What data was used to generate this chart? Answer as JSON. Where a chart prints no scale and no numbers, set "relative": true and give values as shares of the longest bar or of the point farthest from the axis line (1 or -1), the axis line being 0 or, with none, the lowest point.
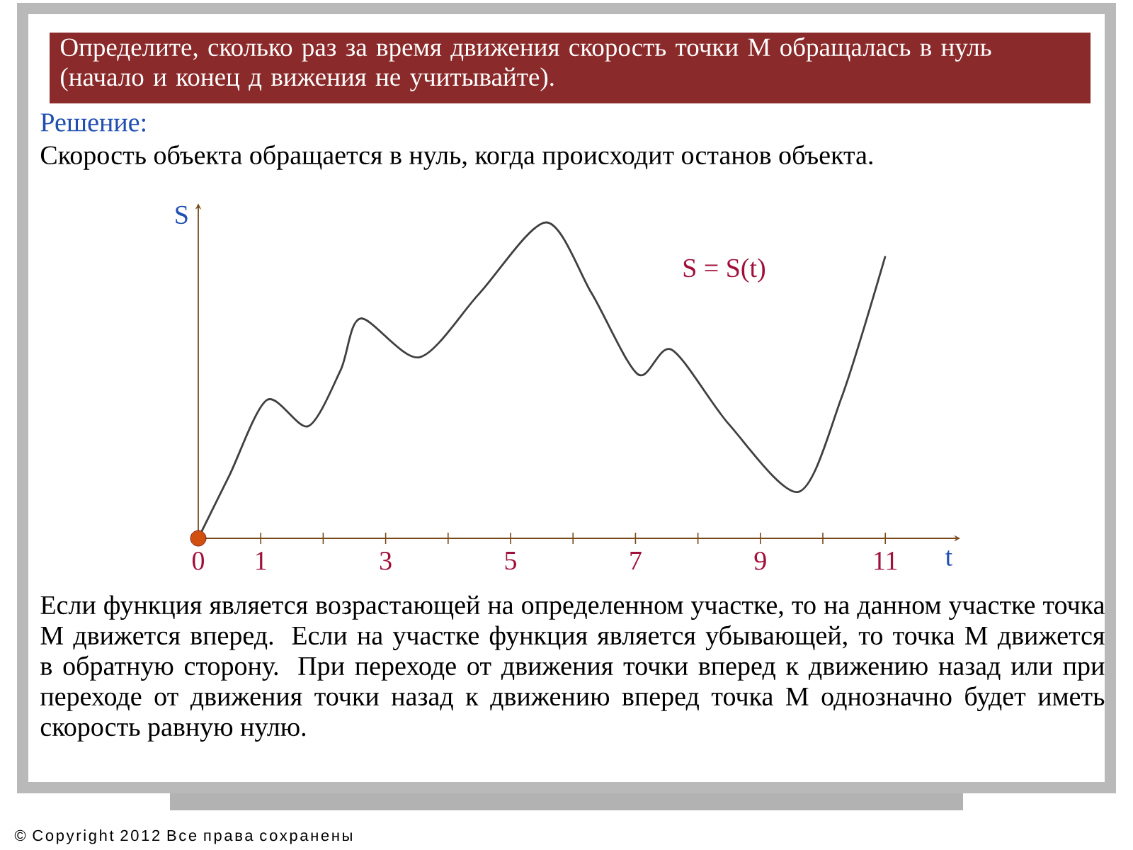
{
  "chart_data": {
    "type": "line",
    "relative": true,
    "title": "Определите, сколько раз за время движения скорость точки М обращалась в нуль (начало и конец д вижения не учитывайте).",
    "subtitle": "Решение:",
    "xlabel": "t",
    "ylabel": "S",
    "xlim": [
      0,
      12.2
    ],
    "xticks": [
      0,
      1,
      {
        "value": 2,
        "label": null
      },
      3,
      {
        "value": 4,
        "label": null
      },
      5,
      {
        "value": 6,
        "label": null
      },
      7,
      {
        "value": 8,
        "label": null
      },
      9,
      {
        "value": 10,
        "label": null
      },
      11
    ],
    "series": [
      {
        "color": "#404040",
        "x": [
          0,
          0.5,
          1.1,
          1.76,
          2.28,
          2.6,
          3.54,
          4.5,
          5.57,
          6.3,
          7.04,
          7.58,
          8.5,
          9.61,
          10.3,
          11
        ],
        "values": [
          0,
          0.2,
          0.438,
          0.355,
          0.533,
          0.696,
          0.573,
          0.775,
          1,
          0.775,
          0.519,
          0.597,
          0.36,
          0.147,
          0.446,
          0.893
        ]
      },
      {
        "type": "scatter",
        "marker": "circle",
        "color": "#d2500f",
        "x": [
          0
        ],
        "values": [
          0
        ]
      }
    ],
    "annotations": [
      "S = S(t)",
      "Скорость объекта обращается в нуль, когда происходит останов объекта.",
      "Если функция является возрастающей на определенном участке, то на данном участке точка М движется вперед. Если на участке функция является убывающей, то точка М движется в обратную сторону. При переходе от движения точки вперед к движению назад или при переходе от движения точки назад к движению вперед точка М однозначно будет иметь скорость равную нулю.",
      "© Copyright 2012 Все права сохранены"
    ]
  }
}
